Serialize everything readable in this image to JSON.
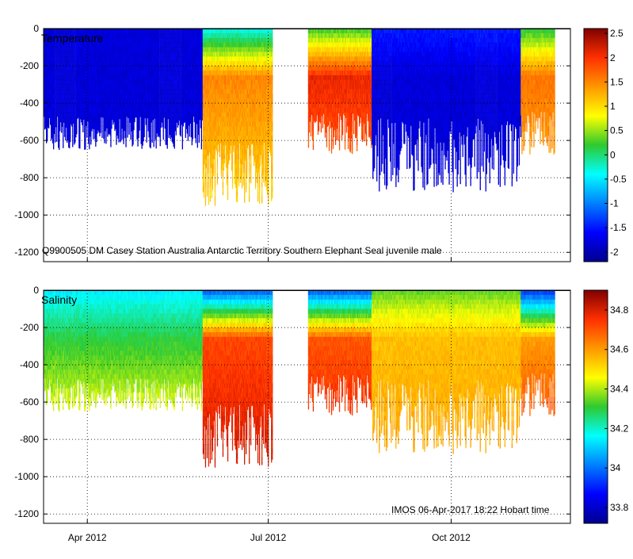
{
  "chart_data": [
    {
      "type": "heatmap",
      "title": "Temperature",
      "variable": "temperature",
      "annotation": "Q9900505 DM Casey Station Australia Antarctic Territory Southern Elephant Seal juvenile male",
      "x_ticks": [
        "Apr 2012",
        "Jul 2012",
        "Oct 2012"
      ],
      "x_tick_days": [
        22,
        113,
        205
      ],
      "xlim_days": [
        0,
        265
      ],
      "gaps_days": [
        [
          115,
          133
        ]
      ],
      "y_ticks": [
        0,
        -200,
        -400,
        -600,
        -800,
        -1000,
        -1200
      ],
      "ylim": [
        -1250,
        0
      ],
      "ylabel": "",
      "colorbar": {
        "ticks": [
          2.5,
          2,
          1.5,
          1,
          0.5,
          0,
          -0.5,
          -1,
          -1.5,
          -2
        ],
        "tick_labels": [
          "2.5",
          "2",
          "1.5",
          "1",
          "0.5",
          "0",
          "-0.5",
          "-1",
          "-1.5",
          "-2"
        ],
        "range": [
          -2.2,
          2.6
        ]
      },
      "segments": [
        {
          "start": 0,
          "end": 80,
          "surface": -1.8,
          "mid": -1.8,
          "deep": -1.8,
          "depth": 560,
          "spread": 90
        },
        {
          "start": 80,
          "end": 115,
          "surface": -0.3,
          "mid": 1.5,
          "deep": 1.1,
          "depth": 780,
          "spread": 170
        },
        {
          "start": 133,
          "end": 165,
          "surface": 0.3,
          "mid": 2.1,
          "deep": 1.6,
          "depth": 560,
          "spread": 110
        },
        {
          "start": 165,
          "end": 240,
          "surface": -1.5,
          "mid": -1.8,
          "deep": -1.8,
          "depth": 680,
          "spread": 200
        },
        {
          "start": 240,
          "end": 257,
          "surface": 0.2,
          "mid": 1.6,
          "deep": 1.3,
          "depth": 560,
          "spread": 120
        }
      ]
    },
    {
      "type": "heatmap",
      "title": "Salinity",
      "variable": "salinity",
      "annotation": "IMOS 06-Apr-2017 18:22 Hobart time",
      "x_ticks": [
        "Apr 2012",
        "Jul 2012",
        "Oct 2012"
      ],
      "x_tick_days": [
        22,
        113,
        205
      ],
      "xlim_days": [
        0,
        265
      ],
      "gaps_days": [
        [
          115,
          133
        ]
      ],
      "y_ticks": [
        0,
        -200,
        -400,
        -600,
        -800,
        -1000,
        -1200
      ],
      "ylim": [
        -1250,
        0
      ],
      "ylabel": "",
      "colorbar": {
        "ticks": [
          34.8,
          34.6,
          34.4,
          34.2,
          34,
          33.8
        ],
        "tick_labels": [
          "34.8",
          "34.6",
          "34.4",
          "34.2",
          "34",
          "33.8"
        ],
        "range": [
          33.72,
          34.9
        ]
      },
      "segments": [
        {
          "start": 0,
          "end": 80,
          "surface": 34.15,
          "mid": 34.3,
          "deep": 34.52,
          "depth": 560,
          "spread": 90
        },
        {
          "start": 80,
          "end": 115,
          "surface": 34.0,
          "mid": 34.72,
          "deep": 34.8,
          "depth": 780,
          "spread": 170
        },
        {
          "start": 133,
          "end": 165,
          "surface": 34.0,
          "mid": 34.7,
          "deep": 34.78,
          "depth": 560,
          "spread": 110
        },
        {
          "start": 165,
          "end": 240,
          "surface": 34.35,
          "mid": 34.55,
          "deep": 34.58,
          "depth": 680,
          "spread": 200
        },
        {
          "start": 240,
          "end": 257,
          "surface": 33.95,
          "mid": 34.6,
          "deep": 34.75,
          "depth": 560,
          "spread": 120
        }
      ]
    }
  ]
}
